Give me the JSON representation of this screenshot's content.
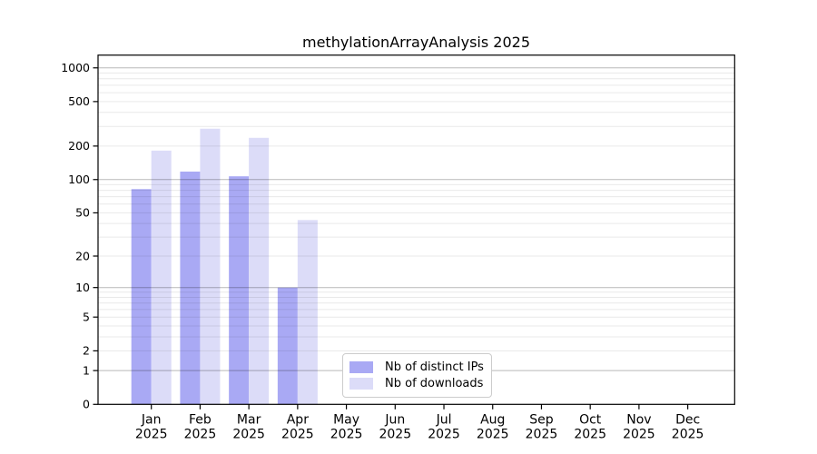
{
  "chart_data": {
    "type": "bar",
    "title": "methylationArrayAnalysis 2025",
    "categories": [
      "Jan",
      "Feb",
      "Mar",
      "Apr",
      "May",
      "Jun",
      "Jul",
      "Aug",
      "Sep",
      "Oct",
      "Nov",
      "Dec"
    ],
    "x_tick_year": "2025",
    "series": [
      {
        "name": "Nb of distinct IPs",
        "color": "#a9a9f4",
        "values": [
          82,
          118,
          107,
          10,
          0,
          0,
          0,
          0,
          0,
          0,
          0,
          0
        ]
      },
      {
        "name": "Nb of downloads",
        "color": "#dcdcf8",
        "values": [
          182,
          286,
          237,
          43,
          0,
          0,
          0,
          0,
          0,
          0,
          0,
          0
        ]
      }
    ],
    "xlabel": "",
    "ylabel": "",
    "y_ticks": [
      0,
      1,
      2,
      5,
      10,
      20,
      50,
      100,
      200,
      500,
      1000
    ],
    "y_scale": "log10(value+1)",
    "ylim": [
      0,
      1300
    ],
    "grid": {
      "major_values": [
        1,
        10,
        100,
        1000
      ],
      "minor_values": [
        2,
        3,
        4,
        5,
        6,
        7,
        8,
        9,
        20,
        30,
        40,
        50,
        60,
        70,
        80,
        90,
        200,
        300,
        400,
        500,
        600,
        700,
        800,
        900
      ],
      "major_color": "rgba(0,0,0,0.28)",
      "minor_color": "rgba(0,0,0,0.085)"
    },
    "legend": {
      "position": "inside-bottom-center",
      "entries": [
        "Nb of distinct IPs",
        "Nb of downloads"
      ]
    },
    "axis_color": "#000000",
    "background_color": "#ffffff"
  }
}
